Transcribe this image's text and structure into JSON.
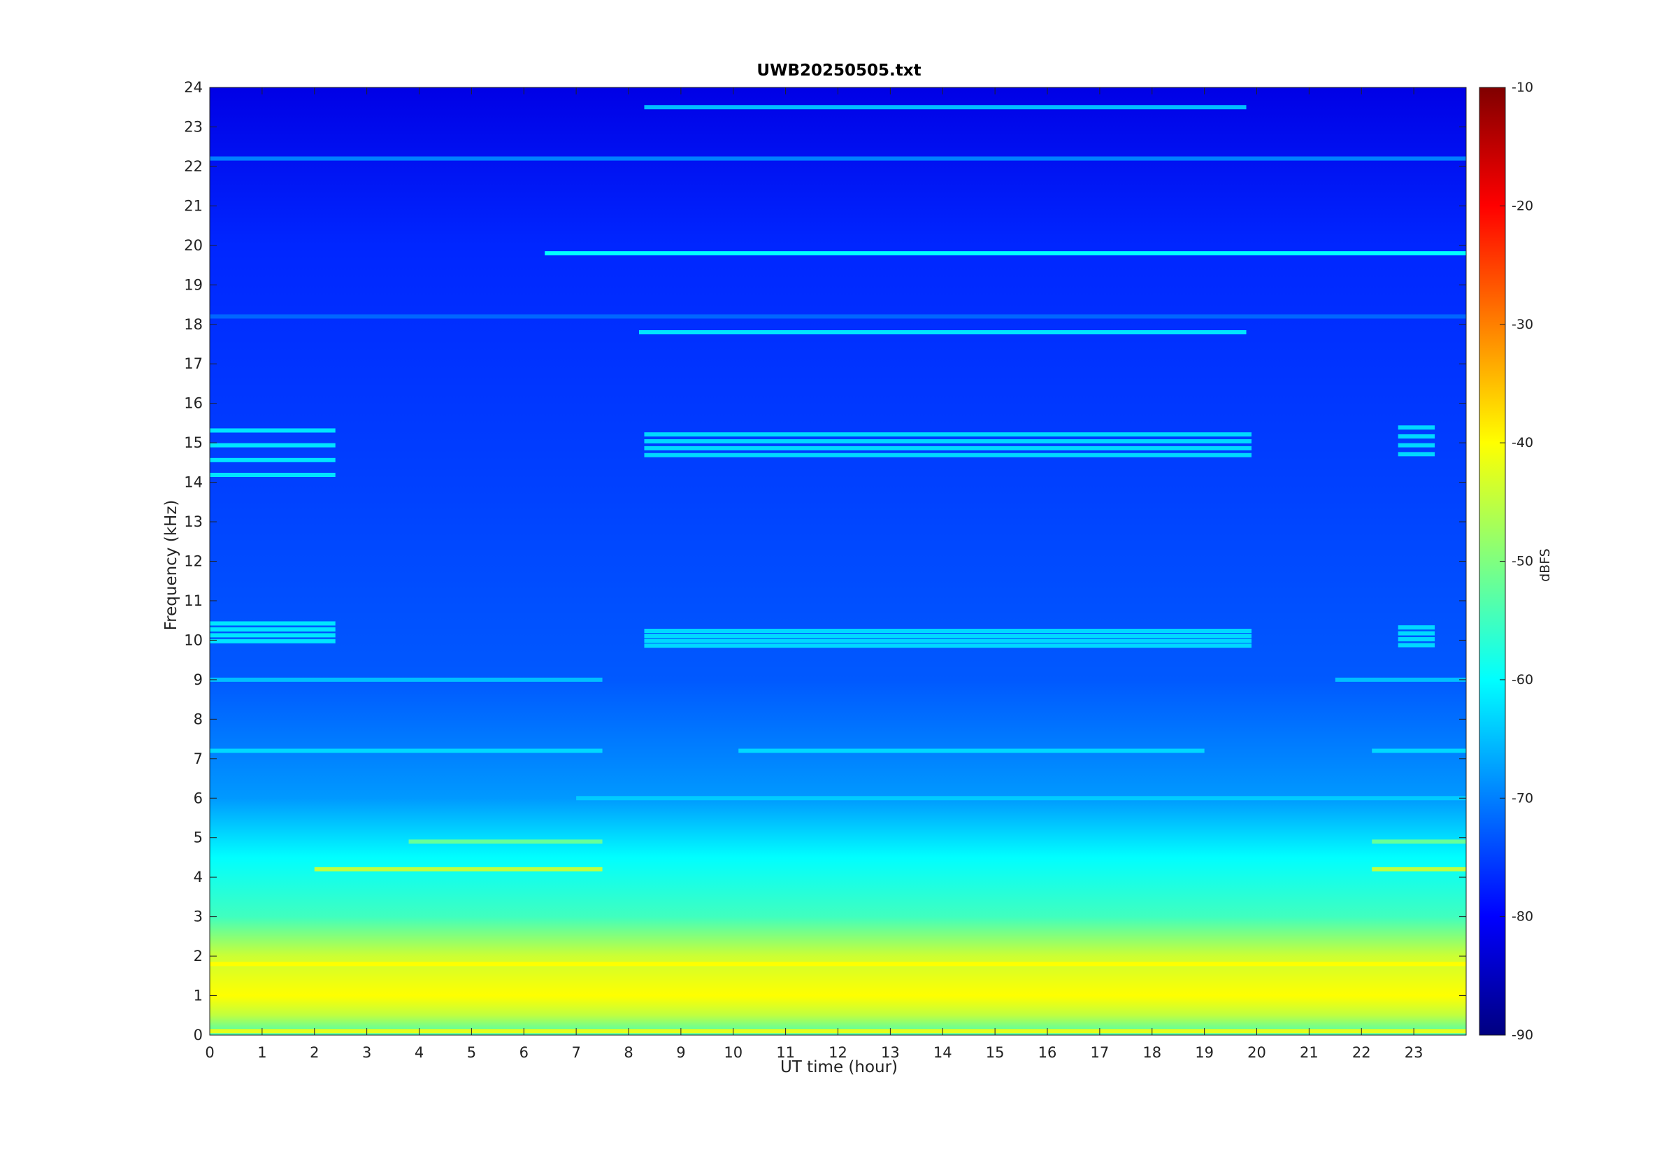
{
  "chart_data": {
    "type": "heatmap",
    "title": "UWB20250505.txt",
    "xlabel": "UT time (hour)",
    "ylabel": "Frequency (kHz)",
    "colorbar_label": "dBFS",
    "xlim": [
      0,
      24
    ],
    "ylim": [
      0,
      24
    ],
    "clim": [
      -90,
      -10
    ],
    "colormap": "jet",
    "x_ticks": [
      0,
      1,
      2,
      3,
      4,
      5,
      6,
      7,
      8,
      9,
      10,
      11,
      12,
      13,
      14,
      15,
      16,
      17,
      18,
      19,
      20,
      21,
      22,
      23
    ],
    "y_ticks": [
      0,
      1,
      2,
      3,
      4,
      5,
      6,
      7,
      8,
      9,
      10,
      11,
      12,
      13,
      14,
      15,
      16,
      17,
      18,
      19,
      20,
      21,
      22,
      23,
      24
    ],
    "colorbar_ticks": [
      -10,
      -20,
      -30,
      -40,
      -50,
      -60,
      -70,
      -80,
      -90
    ],
    "background_level_by_freq_khz": [
      {
        "f": 0.0,
        "dbfs": -55
      },
      {
        "f": 0.5,
        "dbfs": -45
      },
      {
        "f": 1.0,
        "dbfs": -40
      },
      {
        "f": 2.0,
        "dbfs": -44
      },
      {
        "f": 3.0,
        "dbfs": -55
      },
      {
        "f": 4.5,
        "dbfs": -60
      },
      {
        "f": 6.0,
        "dbfs": -68
      },
      {
        "f": 9.0,
        "dbfs": -73
      },
      {
        "f": 14.0,
        "dbfs": -75
      },
      {
        "f": 20.0,
        "dbfs": -77
      },
      {
        "f": 24.0,
        "dbfs": -82
      }
    ],
    "narrowband_lines": [
      {
        "freq_khz": 19.8,
        "start_hour": 6.4,
        "end_hour": 24.0,
        "dbfs": -60
      },
      {
        "freq_khz": 17.8,
        "start_hour": 8.2,
        "end_hour": 19.8,
        "dbfs": -62
      },
      {
        "freq_khz": 23.5,
        "start_hour": 8.3,
        "end_hour": 19.8,
        "dbfs": -65
      },
      {
        "freq_khz": 22.2,
        "start_hour": 0.0,
        "end_hour": 24.0,
        "dbfs": -70
      },
      {
        "freq_khz": 18.2,
        "start_hour": 0.0,
        "end_hour": 24.0,
        "dbfs": -72
      },
      {
        "freq_khz": 6.0,
        "start_hour": 7.0,
        "end_hour": 24.0,
        "dbfs": -64
      },
      {
        "freq_khz": 7.2,
        "start_hour": 0.0,
        "end_hour": 7.5,
        "dbfs": -63
      },
      {
        "freq_khz": 7.2,
        "start_hour": 10.1,
        "end_hour": 19.0,
        "dbfs": -63
      },
      {
        "freq_khz": 7.2,
        "start_hour": 22.2,
        "end_hour": 24.0,
        "dbfs": -63
      },
      {
        "freq_khz": 4.2,
        "start_hour": 2.0,
        "end_hour": 7.5,
        "dbfs": -45
      },
      {
        "freq_khz": 4.2,
        "start_hour": 22.2,
        "end_hour": 24.0,
        "dbfs": -45
      },
      {
        "freq_khz": 4.9,
        "start_hour": 3.8,
        "end_hour": 7.5,
        "dbfs": -52
      },
      {
        "freq_khz": 4.9,
        "start_hour": 22.2,
        "end_hour": 24.0,
        "dbfs": -52
      },
      {
        "freq_khz": 9.0,
        "start_hour": 0.0,
        "end_hour": 7.5,
        "dbfs": -65
      },
      {
        "freq_khz": 9.0,
        "start_hour": 21.5,
        "end_hour": 24.0,
        "dbfs": -65
      },
      {
        "freq_khz": 1.8,
        "start_hour": 0.0,
        "end_hour": 24.0,
        "dbfs": -40
      },
      {
        "freq_khz": 0.1,
        "start_hour": 0.0,
        "end_hour": 24.0,
        "dbfs": -42
      }
    ],
    "band_groups": [
      {
        "freq_low_khz": 14.0,
        "freq_high_khz": 15.5,
        "start_hour": 0.0,
        "end_hour": 2.4,
        "dbfs": -62
      },
      {
        "freq_low_khz": 9.9,
        "freq_high_khz": 10.5,
        "start_hour": 0.0,
        "end_hour": 2.4,
        "dbfs": -62
      },
      {
        "freq_low_khz": 14.6,
        "freq_high_khz": 15.3,
        "start_hour": 8.3,
        "end_hour": 19.9,
        "dbfs": -63
      },
      {
        "freq_low_khz": 9.8,
        "freq_high_khz": 10.3,
        "start_hour": 8.3,
        "end_hour": 19.9,
        "dbfs": -63
      },
      {
        "freq_low_khz": 14.6,
        "freq_high_khz": 15.5,
        "start_hour": 22.7,
        "end_hour": 23.4,
        "dbfs": -63
      },
      {
        "freq_low_khz": 9.8,
        "freq_high_khz": 10.4,
        "start_hour": 22.7,
        "end_hour": 23.4,
        "dbfs": -63
      }
    ]
  }
}
